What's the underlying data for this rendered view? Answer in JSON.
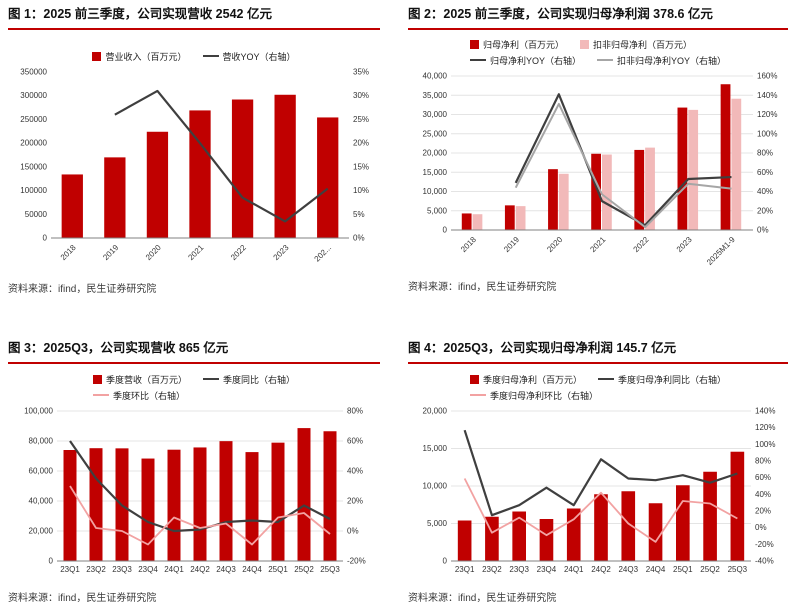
{
  "source_label": "资料来源：ifind，民生证券研究院",
  "colors": {
    "red": "#c00000",
    "pink_bar": "#f2b9b9",
    "pink_line": "#f2a2a2",
    "dark": "#3f3f3f",
    "gray": "#a6a6a6"
  },
  "chart_data": [
    {
      "type": "bar",
      "title": "图 1：2025 前三季度，公司实现营收 2542 亿元",
      "categories": [
        "2018",
        "2019",
        "2020",
        "2021",
        "2022",
        "2023",
        "202..."
      ],
      "legend_rows": [
        [
          {
            "type": "bar",
            "color": "#c00000",
            "label": "营业收入（百万元）"
          },
          {
            "type": "line",
            "color": "#3f3f3f",
            "label": "营收YOY（右轴）"
          }
        ]
      ],
      "bar_series": [
        {
          "name": "营业收入（百万元）",
          "color": "#c00000",
          "values": [
            134000,
            170000,
            224000,
            269000,
            292000,
            302000,
            254200
          ]
        }
      ],
      "line_series": [
        {
          "name": "营收YOY（右轴）",
          "color": "#3f3f3f",
          "width": 2.2,
          "values": [
            null,
            26,
            31,
            20,
            8.5,
            3.5,
            10.4
          ]
        }
      ],
      "left_axis": {
        "min": 0,
        "max": 350000,
        "step": 50000,
        "comma": false
      },
      "right_axis": {
        "min": 0,
        "max": 35,
        "step": 5
      },
      "grid": false,
      "rotate_labels": true,
      "bar_width": 0.5
    },
    {
      "type": "bar",
      "title": "图 2：2025 前三季度，公司实现归母净利润 378.6 亿元",
      "categories": [
        "2018",
        "2019",
        "2020",
        "2021",
        "2022",
        "2023",
        "2025M1-9"
      ],
      "legend_rows": [
        [
          {
            "type": "bar",
            "color": "#c00000",
            "label": "归母净利（百万元）"
          },
          {
            "type": "bar",
            "color": "#f2b9b9",
            "label": "扣非归母净利（百万元）"
          }
        ],
        [
          {
            "type": "line",
            "color": "#3f3f3f",
            "label": "归母净利YOY（右轴）"
          },
          {
            "type": "line",
            "color": "#a6a6a6",
            "label": "扣非归母净利YOY（右轴）"
          }
        ]
      ],
      "bar_series": [
        {
          "name": "归母净利（百万元）",
          "color": "#c00000",
          "values": [
            4300,
            6400,
            15800,
            19800,
            20800,
            31800,
            37860
          ]
        },
        {
          "name": "扣非归母净利（百万元）",
          "color": "#f2b9b9",
          "values": [
            4100,
            6200,
            14600,
            19600,
            21400,
            31200,
            34100
          ]
        }
      ],
      "line_series": [
        {
          "name": "归母净利YOY（右轴）",
          "color": "#3f3f3f",
          "width": 2.2,
          "values": [
            null,
            49,
            141,
            30,
            5,
            53,
            55
          ]
        },
        {
          "name": "扣非归母净利YOY（右轴）",
          "color": "#a6a6a6",
          "width": 2,
          "values": [
            null,
            44,
            131,
            37,
            3,
            48,
            43
          ]
        }
      ],
      "left_axis": {
        "min": 0,
        "max": 40000,
        "step": 5000,
        "comma": true
      },
      "right_axis": {
        "min": 0,
        "max": 160,
        "step": 20
      },
      "grid": true,
      "rotate_labels": true,
      "bar_width": 0.5
    },
    {
      "type": "bar",
      "title": "图 3：2025Q3，公司实现营收 865 亿元",
      "categories": [
        "23Q1",
        "23Q2",
        "23Q3",
        "23Q4",
        "24Q1",
        "24Q2",
        "24Q3",
        "24Q4",
        "25Q1",
        "25Q2",
        "25Q3"
      ],
      "legend_rows": [
        [
          {
            "type": "bar",
            "color": "#c00000",
            "label": "季度营收（百万元）"
          },
          {
            "type": "line",
            "color": "#3f3f3f",
            "label": "季度同比（右轴）"
          }
        ],
        [
          {
            "type": "line",
            "color": "#f2a2a2",
            "label": "季度环比（右轴）"
          }
        ]
      ],
      "bar_series": [
        {
          "name": "季度营收（百万元）",
          "color": "#c00000",
          "values": [
            74000,
            75200,
            75100,
            68300,
            74200,
            75700,
            79900,
            72600,
            78900,
            88600,
            86500
          ]
        }
      ],
      "line_series": [
        {
          "name": "季度同比（右轴）",
          "color": "#3f3f3f",
          "width": 2.2,
          "values": [
            60,
            35,
            17,
            6,
            0,
            1,
            6,
            7,
            6,
            17,
            8
          ]
        },
        {
          "name": "季度环比（右轴）",
          "color": "#f2a2a2",
          "width": 1.8,
          "values": [
            30,
            2,
            0,
            -9,
            9,
            2,
            5,
            -9,
            9,
            12,
            -2
          ]
        }
      ],
      "left_axis": {
        "min": 0,
        "max": 100000,
        "step": 20000,
        "comma": true
      },
      "right_axis": {
        "min": -20,
        "max": 80,
        "step": 20
      },
      "grid": true,
      "rotate_labels": false,
      "bar_width": 0.5
    },
    {
      "type": "bar",
      "title": "图 4：2025Q3，公司实现归母净利润 145.7 亿元",
      "categories": [
        "23Q1",
        "23Q2",
        "23Q3",
        "23Q4",
        "24Q1",
        "24Q2",
        "24Q3",
        "24Q4",
        "25Q1",
        "25Q2",
        "25Q3"
      ],
      "legend_rows": [
        [
          {
            "type": "bar",
            "color": "#c00000",
            "label": "季度归母净利（百万元）"
          },
          {
            "type": "line",
            "color": "#3f3f3f",
            "label": "季度归母净利同比（右轴）"
          }
        ],
        [
          {
            "type": "line",
            "color": "#f2a2a2",
            "label": "季度归母净利环比（右轴）"
          }
        ]
      ],
      "bar_series": [
        {
          "name": "季度归母净利（百万元）",
          "color": "#c00000",
          "values": [
            5400,
            5900,
            6600,
            5600,
            7000,
            8900,
            9300,
            7700,
            10100,
            11900,
            14570
          ]
        }
      ],
      "line_series": [
        {
          "name": "季度归母净利同比（右轴）",
          "color": "#3f3f3f",
          "width": 2.2,
          "values": [
            117,
            15,
            27,
            48,
            27,
            82,
            59,
            57,
            63,
            54,
            65
          ]
        },
        {
          "name": "季度归母净利环比（右轴）",
          "color": "#f2a2a2",
          "width": 1.8,
          "values": [
            59,
            -6,
            12,
            -9,
            10,
            42,
            5,
            -17,
            32,
            29,
            11
          ]
        }
      ],
      "left_axis": {
        "min": 0,
        "max": 20000,
        "step": 5000,
        "comma": true
      },
      "right_axis": {
        "min": -40,
        "max": 140,
        "step": 20
      },
      "grid": true,
      "rotate_labels": false,
      "bar_width": 0.5
    }
  ]
}
